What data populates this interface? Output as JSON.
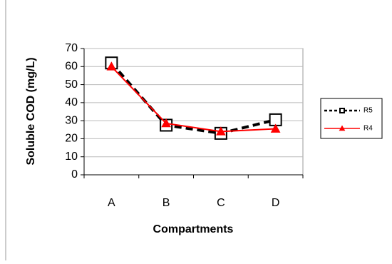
{
  "chart_data": {
    "type": "line",
    "xlabel": "Compartments",
    "ylabel": "Soluble COD (mg/L)",
    "categories": [
      "A",
      "B",
      "C",
      "D"
    ],
    "series": [
      {
        "name": "R5",
        "color": "#000000",
        "values": [
          62,
          27.5,
          23,
          30.5
        ]
      },
      {
        "name": "R4",
        "color": "#ff0000",
        "values": [
          60,
          28.5,
          24,
          25.5
        ]
      }
    ],
    "ylim": [
      0,
      70
    ],
    "yticks": [
      0,
      10,
      20,
      30,
      40,
      50,
      60,
      70
    ],
    "grid": true,
    "legend": "right"
  }
}
